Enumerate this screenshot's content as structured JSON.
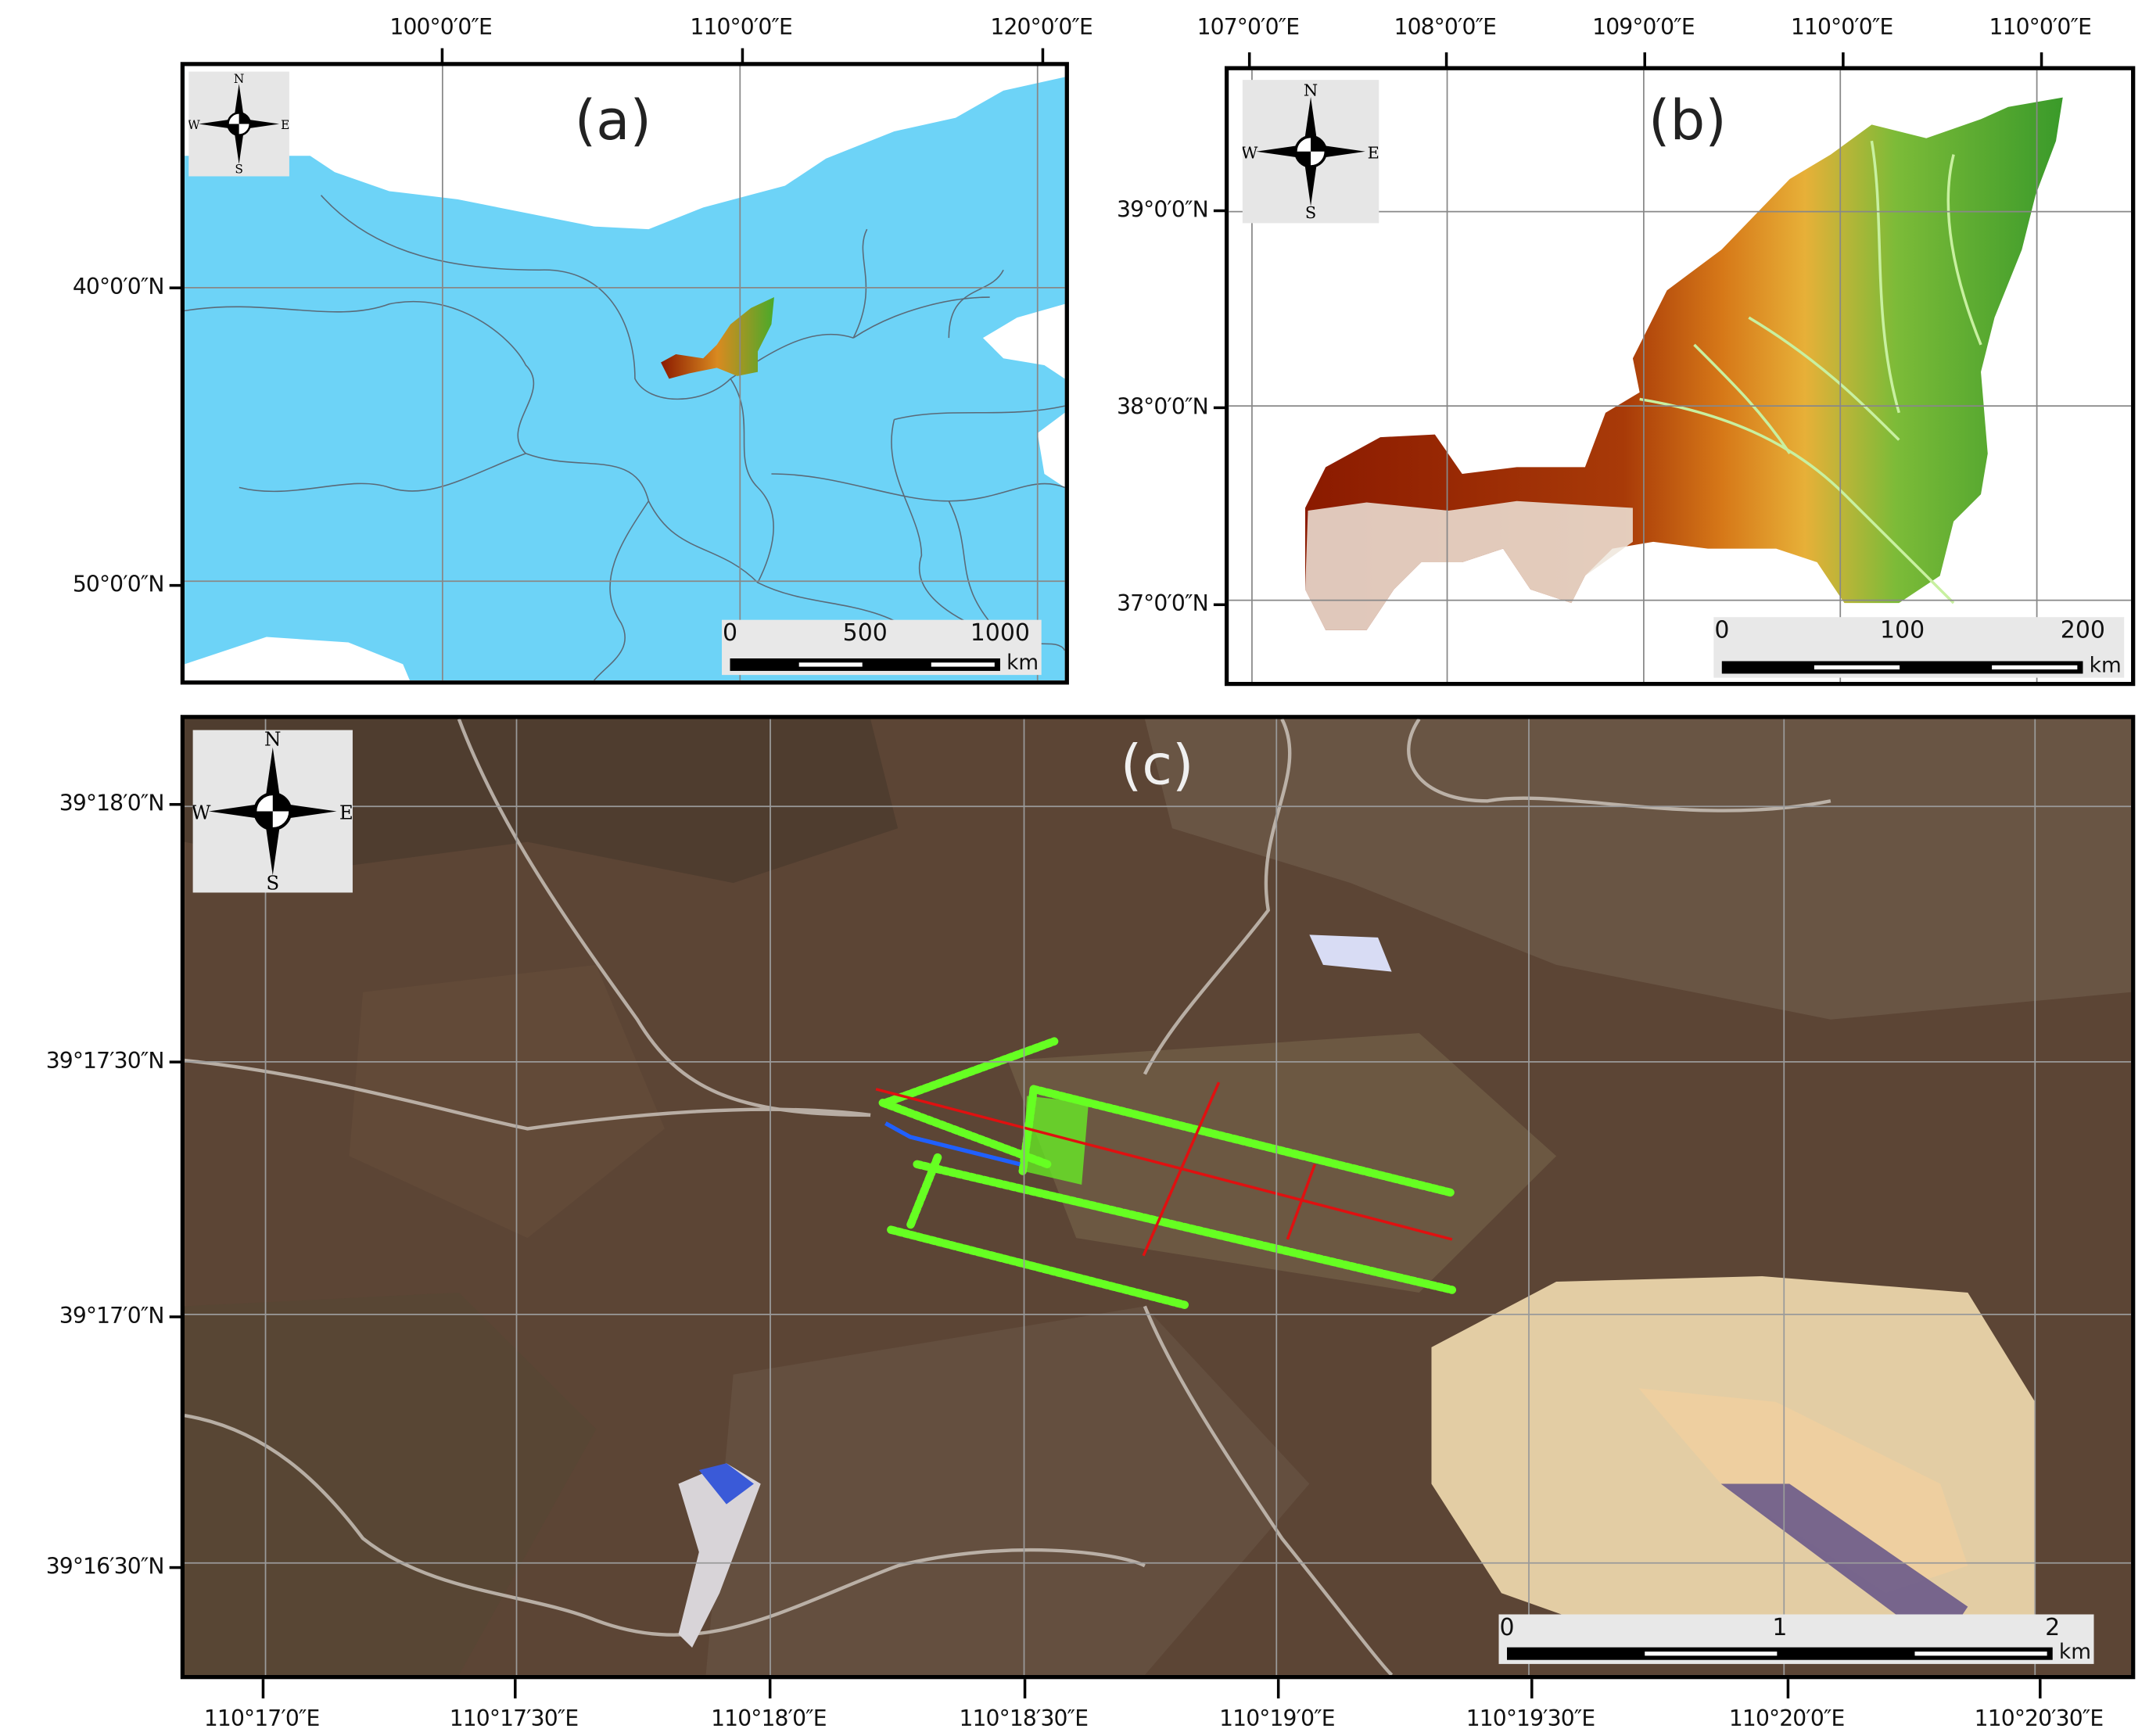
{
  "panels": {
    "a": {
      "tag": "(a)",
      "lon_labels": [
        "100°0′0″E",
        "110°0′0″E",
        "120°0′0″E"
      ],
      "lat_labels": [
        "40°0′0″N",
        "50°0′0″N"
      ],
      "scalebar": {
        "labels": [
          "0",
          "500",
          "1000"
        ],
        "unit": "km"
      },
      "colors": {
        "land": "#6dd3f7",
        "outside": "#ffffff",
        "boundaries": "#5a6a78"
      }
    },
    "b": {
      "tag": "(b)",
      "lon_labels": [
        "107°0′0″E",
        "108°0′0″E",
        "109°0′0″E",
        "110°0′0″E",
        "110°0′0″E"
      ],
      "lat_labels": [
        "39°0′0″N",
        "38°0′0″N",
        "37°0′0″N"
      ],
      "scalebar": {
        "labels": [
          "0",
          "100",
          "200"
        ],
        "unit": "km"
      },
      "colors": {
        "elevation_high": "#8b1a00",
        "elevation_mid": "#e0a030",
        "elevation_low": "#3a9a2a"
      }
    },
    "c": {
      "tag": "(c)",
      "lon_labels": [
        "110°17′0″E",
        "110°17′30″E",
        "110°18′0″E",
        "110°18′30″E",
        "110°19′0″E",
        "110°19′30″E",
        "110°20′0″E",
        "110°20′30″E"
      ],
      "lat_labels": [
        "39°18′0″N",
        "39°17′30″N",
        "39°17′0″N",
        "39°16′30″N"
      ],
      "scalebar": {
        "labels": [
          "0",
          "1",
          "2"
        ],
        "unit": "km"
      },
      "colors": {
        "survey_lines": "#66ff22",
        "profile_lines": "#e01010",
        "blue_line": "#2060ff"
      }
    }
  },
  "compass": {
    "n": "N",
    "s": "S",
    "e": "E",
    "w": "W"
  }
}
